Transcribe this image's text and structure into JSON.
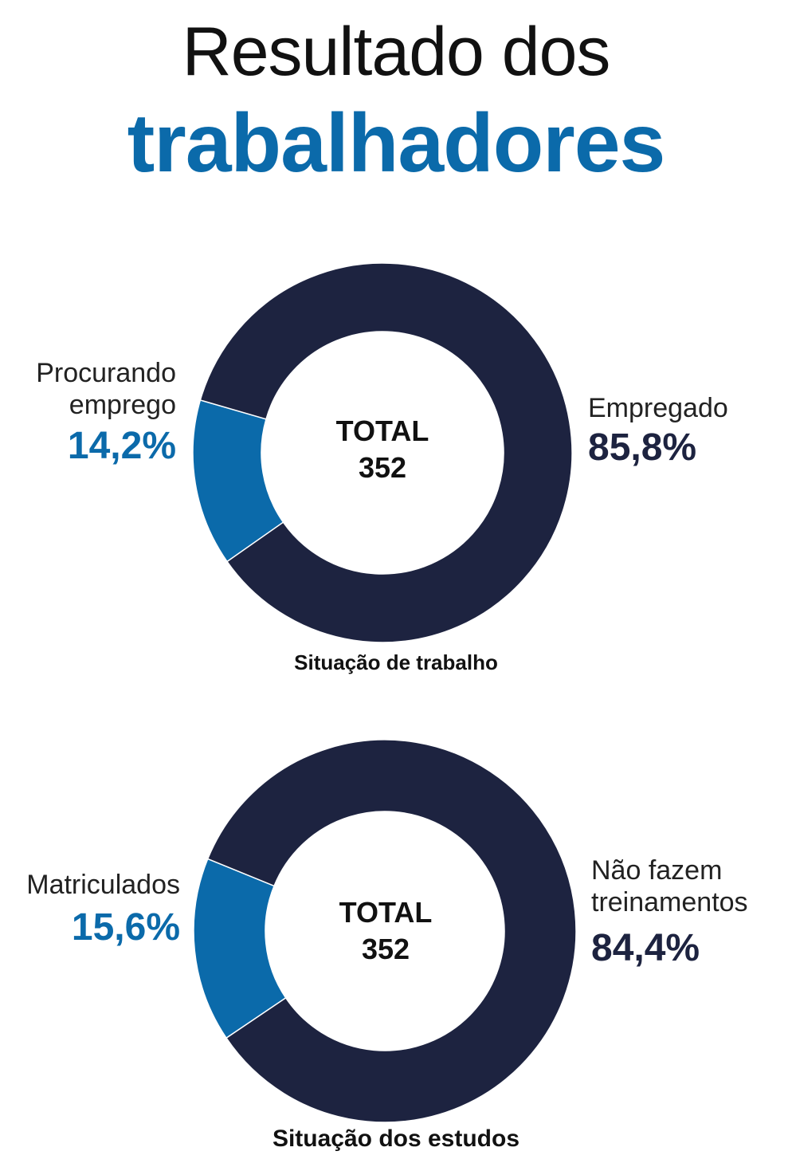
{
  "title": {
    "line1": "Resultado dos",
    "line2": "trabalhadores"
  },
  "colors": {
    "dark": "#1d2340",
    "blue": "#0b6aaa"
  },
  "chart_data": [
    {
      "type": "pie",
      "title": "Situação de trabalho",
      "center_label": "TOTAL",
      "center_value": "352",
      "slices": [
        {
          "label_lines": [
            "Procurando",
            "emprego"
          ],
          "value": 14.2,
          "value_text": "14,2%",
          "color": "#0b6aaa"
        },
        {
          "label_lines": [
            "Empregado"
          ],
          "value": 85.8,
          "value_text": "85,8%",
          "color": "#1d2340"
        }
      ]
    },
    {
      "type": "pie",
      "title": "Situação dos estudos",
      "center_label": "TOTAL",
      "center_value": "352",
      "slices": [
        {
          "label_lines": [
            "Matriculados"
          ],
          "value": 15.6,
          "value_text": "15,6%",
          "color": "#0b6aaa"
        },
        {
          "label_lines": [
            "Não fazem",
            "treinamentos"
          ],
          "value": 84.4,
          "value_text": "84,4%",
          "color": "#1d2340"
        }
      ]
    }
  ]
}
